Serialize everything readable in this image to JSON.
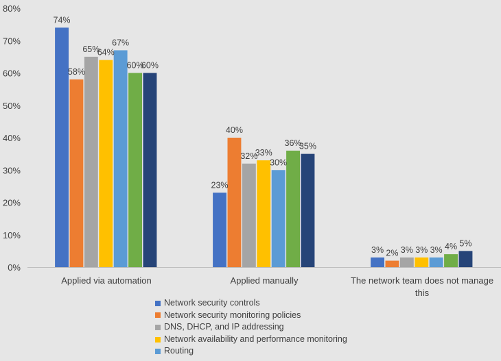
{
  "chart_data": {
    "type": "bar",
    "title": "",
    "xlabel": "",
    "ylabel": "",
    "ylim": [
      0,
      80
    ],
    "y_ticks": [
      "0%",
      "10%",
      "20%",
      "30%",
      "40%",
      "50%",
      "60%",
      "70%",
      "80%"
    ],
    "tick_values": [
      0,
      10,
      20,
      30,
      40,
      50,
      60,
      70,
      80
    ],
    "value_suffix": "%",
    "grid": false,
    "legend_position": "bottom",
    "categories": [
      "Applied via automation",
      "Applied manually",
      "The network team does not manage this"
    ],
    "category_label_lines": [
      [
        "Applied via automation"
      ],
      [
        "Applied manually"
      ],
      [
        "The network team does not manage",
        "this"
      ]
    ],
    "series": [
      {
        "name": "Network security controls",
        "color": "#4472c4",
        "values": [
          74,
          23,
          3
        ]
      },
      {
        "name": "Network security monitoring policies",
        "color": "#ed7d31",
        "values": [
          58,
          40,
          2
        ]
      },
      {
        "name": "DNS, DHCP, and IP addressing",
        "color": "#a5a5a5",
        "values": [
          65,
          32,
          3
        ]
      },
      {
        "name": "Network availability and performance monitoring",
        "color": "#ffc000",
        "values": [
          64,
          33,
          3
        ]
      },
      {
        "name": "Routing",
        "color": "#5b9bd5",
        "values": [
          67,
          30,
          3
        ]
      },
      {
        "name": "",
        "color": "#70ad47",
        "values": [
          60,
          36,
          4
        ]
      },
      {
        "name": "",
        "color": "#264478",
        "values": [
          60,
          35,
          5
        ]
      }
    ],
    "legend_entries": [
      {
        "name": "Network security controls",
        "color": "#4472c4"
      },
      {
        "name": "Network security monitoring policies",
        "color": "#ed7d31"
      },
      {
        "name": "DNS, DHCP, and IP addressing",
        "color": "#a5a5a5"
      },
      {
        "name": "Network availability and performance monitoring",
        "color": "#ffc000"
      },
      {
        "name": "Routing",
        "color": "#5b9bd5"
      }
    ]
  }
}
